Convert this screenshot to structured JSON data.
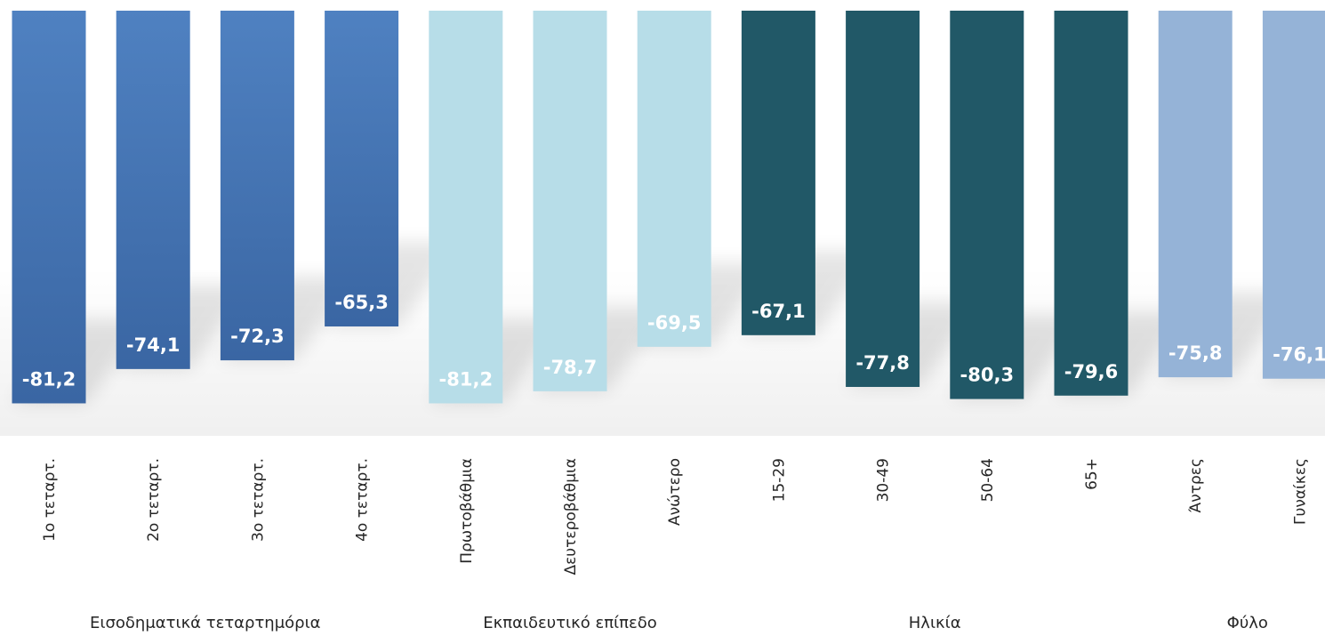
{
  "chart_data": {
    "type": "bar",
    "title": "",
    "xlabel": "",
    "ylabel": "",
    "ylim": [
      -87,
      0
    ],
    "grid": false,
    "legend": "none",
    "categories": [
      "1ο τεταρτ.",
      "2ο τεταρτ.",
      "3ο τεταρτ.",
      "4ο τεταρτ.",
      "Πρωτοβάθμια",
      "Δευτεροβάθμια",
      "Ανώτερο",
      "15-29",
      "30-49",
      "50-64",
      "65+",
      "Άντρες",
      "Γυναίκες"
    ],
    "values": [
      -81.2,
      -74.1,
      -72.3,
      -65.3,
      -81.2,
      -78.7,
      -69.5,
      -67.1,
      -77.8,
      -80.3,
      -79.6,
      -75.8,
      -76.1
    ],
    "value_labels": [
      "-81,2",
      "-74,1",
      "-72,3",
      "-65,3",
      "-81,2",
      "-78,7",
      "-69,5",
      "-67,1",
      "-77,8",
      "-80,3",
      "-79,6",
      "-75,8",
      "-76,1"
    ],
    "groups": [
      {
        "label": "Εισοδηματικά τεταρτημόρια",
        "start": 0,
        "end": 3,
        "color": "#4a7bbc"
      },
      {
        "label": "Εκπαιδευτικό επίπεδο",
        "start": 4,
        "end": 6,
        "color": "#b7dde8"
      },
      {
        "label": "Ηλικία",
        "start": 7,
        "end": 10,
        "color": "#215867"
      },
      {
        "label": "Φύλο",
        "start": 11,
        "end": 12,
        "color": "#95b3d7"
      }
    ]
  }
}
